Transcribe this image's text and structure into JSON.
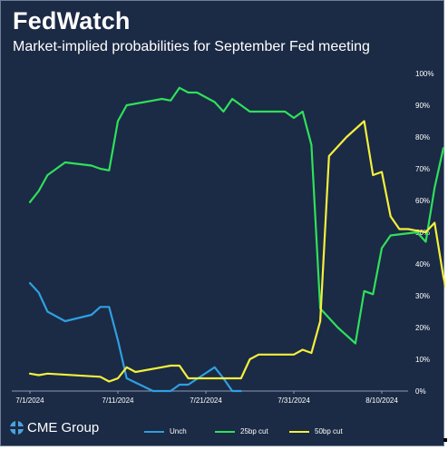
{
  "header": {
    "title": "FedWatch",
    "subtitle": "Market-implied probabilities for September Fed meeting"
  },
  "branding": {
    "logo_text": "CME Group",
    "logo_icon": "cme-globe-icon"
  },
  "colors": {
    "background": "#1b2a45",
    "unch": "#2f9fe0",
    "cut25": "#2fe05b",
    "cut50": "#f4f03c",
    "text": "#ffffff",
    "grid": "#33476a"
  },
  "chart_data": {
    "type": "line",
    "title": "Market-implied probabilities for September Fed meeting",
    "xlabel": "",
    "ylabel": "",
    "x_ticks": [
      "7/1/2024",
      "7/11/2024",
      "7/21/2024",
      "7/31/2024",
      "8/10/2024"
    ],
    "y_ticks": [
      "0%",
      "10%",
      "20%",
      "30%",
      "40%",
      "50%",
      "60%",
      "70%",
      "80%",
      "90%",
      "100%"
    ],
    "ylim": [
      0,
      100
    ],
    "xlim": [
      "2024-07-01",
      "2024-08-16"
    ],
    "y_axis_position": "right",
    "grid": false,
    "legend": "bottom",
    "series": [
      {
        "name": "Unch",
        "color": "#2f9fe0",
        "points": [
          [
            "2024-07-01",
            34
          ],
          [
            "2024-07-02",
            31
          ],
          [
            "2024-07-03",
            25
          ],
          [
            "2024-07-05",
            22
          ],
          [
            "2024-07-08",
            24
          ],
          [
            "2024-07-09",
            26.5
          ],
          [
            "2024-07-10",
            26.5
          ],
          [
            "2024-07-11",
            16
          ],
          [
            "2024-07-12",
            4
          ],
          [
            "2024-07-15",
            0
          ],
          [
            "2024-07-16",
            0
          ],
          [
            "2024-07-17",
            0
          ],
          [
            "2024-07-18",
            2
          ],
          [
            "2024-07-19",
            2
          ],
          [
            "2024-07-22",
            7.5
          ],
          [
            "2024-07-23",
            4
          ],
          [
            "2024-07-24",
            0
          ],
          [
            "2024-07-25",
            0
          ]
        ]
      },
      {
        "name": "25bp cut",
        "color": "#2fe05b",
        "points": [
          [
            "2024-07-01",
            59.5
          ],
          [
            "2024-07-02",
            63
          ],
          [
            "2024-07-03",
            68
          ],
          [
            "2024-07-05",
            72
          ],
          [
            "2024-07-08",
            71
          ],
          [
            "2024-07-09",
            70
          ],
          [
            "2024-07-10",
            69.5
          ],
          [
            "2024-07-11",
            85
          ],
          [
            "2024-07-12",
            90
          ],
          [
            "2024-07-15",
            91.5
          ],
          [
            "2024-07-16",
            92
          ],
          [
            "2024-07-17",
            91.5
          ],
          [
            "2024-07-18",
            95.5
          ],
          [
            "2024-07-19",
            94
          ],
          [
            "2024-07-20",
            94
          ],
          [
            "2024-07-22",
            91
          ],
          [
            "2024-07-23",
            88
          ],
          [
            "2024-07-24",
            92
          ],
          [
            "2024-07-26",
            88
          ],
          [
            "2024-07-29",
            88
          ],
          [
            "2024-07-30",
            88
          ],
          [
            "2024-07-31",
            86
          ],
          [
            "2024-08-01",
            88
          ],
          [
            "2024-08-02",
            77.5
          ],
          [
            "2024-08-03",
            26
          ],
          [
            "2024-08-05",
            20
          ],
          [
            "2024-08-07",
            15
          ],
          [
            "2024-08-08",
            31.5
          ],
          [
            "2024-08-09",
            30.5
          ],
          [
            "2024-08-10",
            45
          ],
          [
            "2024-08-11",
            49
          ],
          [
            "2024-08-14",
            50
          ],
          [
            "2024-08-15",
            47
          ],
          [
            "2024-08-16",
            64
          ],
          [
            "2024-08-17",
            76.5
          ]
        ]
      },
      {
        "name": "50bp cut",
        "color": "#f4f03c",
        "points": [
          [
            "2024-07-01",
            5.5
          ],
          [
            "2024-07-02",
            5
          ],
          [
            "2024-07-03",
            5.5
          ],
          [
            "2024-07-09",
            4.5
          ],
          [
            "2024-07-10",
            3
          ],
          [
            "2024-07-11",
            4
          ],
          [
            "2024-07-12",
            7.5
          ],
          [
            "2024-07-13",
            6
          ],
          [
            "2024-07-16",
            7.5
          ],
          [
            "2024-07-17",
            8
          ],
          [
            "2024-07-18",
            8
          ],
          [
            "2024-07-19",
            4
          ],
          [
            "2024-07-22",
            4
          ],
          [
            "2024-07-23",
            4
          ],
          [
            "2024-07-24",
            4
          ],
          [
            "2024-07-25",
            4
          ],
          [
            "2024-07-26",
            10
          ],
          [
            "2024-07-27",
            11.5
          ],
          [
            "2024-07-30",
            11.5
          ],
          [
            "2024-07-31",
            11.5
          ],
          [
            "2024-08-01",
            13
          ],
          [
            "2024-08-02",
            12
          ],
          [
            "2024-08-03",
            22
          ],
          [
            "2024-08-04",
            74
          ],
          [
            "2024-08-06",
            80
          ],
          [
            "2024-08-08",
            85
          ],
          [
            "2024-08-09",
            68
          ],
          [
            "2024-08-10",
            69
          ],
          [
            "2024-08-11",
            55
          ],
          [
            "2024-08-12",
            51
          ],
          [
            "2024-08-13",
            51
          ],
          [
            "2024-08-14",
            50.5
          ],
          [
            "2024-08-15",
            50
          ],
          [
            "2024-08-16",
            53
          ],
          [
            "2024-08-17",
            36
          ],
          [
            "2024-08-18",
            23.5
          ]
        ]
      }
    ]
  }
}
